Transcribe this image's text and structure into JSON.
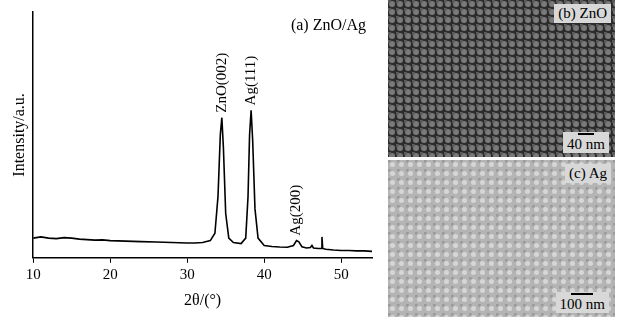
{
  "chart_data": {
    "type": "line",
    "title": "(a) ZnO/Ag",
    "x_label": "2θ/(°)",
    "y_label": "Intensity/a.u.",
    "x": [
      10,
      11,
      12,
      13,
      14,
      15,
      16,
      17,
      18,
      19,
      20,
      22,
      24,
      26,
      28,
      30,
      31,
      32,
      33,
      33.6,
      34,
      34.3,
      34.5,
      34.7,
      35,
      35.4,
      36,
      37,
      37.6,
      37.9,
      38.1,
      38.3,
      38.5,
      38.8,
      39.2,
      40,
      41,
      42,
      43,
      43.8,
      44.2,
      44.5,
      44.9,
      45.5,
      46,
      46.2,
      46.4,
      47,
      47.4,
      47.5,
      47.6,
      48,
      49,
      50,
      51,
      52,
      53,
      54
    ],
    "values": [
      8,
      8.5,
      8,
      7.8,
      8.2,
      8,
      7.6,
      7.4,
      7.2,
      7.3,
      7,
      6.8,
      6.6,
      6.4,
      6.2,
      6,
      6,
      6.2,
      7,
      10,
      25,
      50,
      57,
      45,
      18,
      8,
      6.2,
      5.8,
      8,
      25,
      50,
      60,
      48,
      20,
      8,
      5,
      4.6,
      4.4,
      4.3,
      5,
      7,
      6.5,
      4.5,
      4,
      4.2,
      5,
      4,
      3.8,
      3.8,
      8.5,
      3.8,
      3.5,
      3.2,
      3,
      3,
      2.8,
      2.8,
      2.6
    ],
    "color": "#000000",
    "xlim": [
      10,
      54
    ],
    "xticks": [
      10,
      20,
      30,
      40,
      50
    ],
    "ylim": [
      0,
      100
    ],
    "tick_labels": "x",
    "grid": false,
    "annotations": [
      {
        "text": "ZnO(002)",
        "x": 34.5,
        "y": 59
      },
      {
        "text": "Ag(111)",
        "x": 38.3,
        "y": 62
      },
      {
        "text": "Ag(200)",
        "x": 44.2,
        "y": 9
      }
    ]
  },
  "images": [
    {
      "label": "(b) ZnO",
      "scale_bar": "40 nm"
    },
    {
      "label": "(c) Ag",
      "scale_bar": "100 nm"
    }
  ]
}
